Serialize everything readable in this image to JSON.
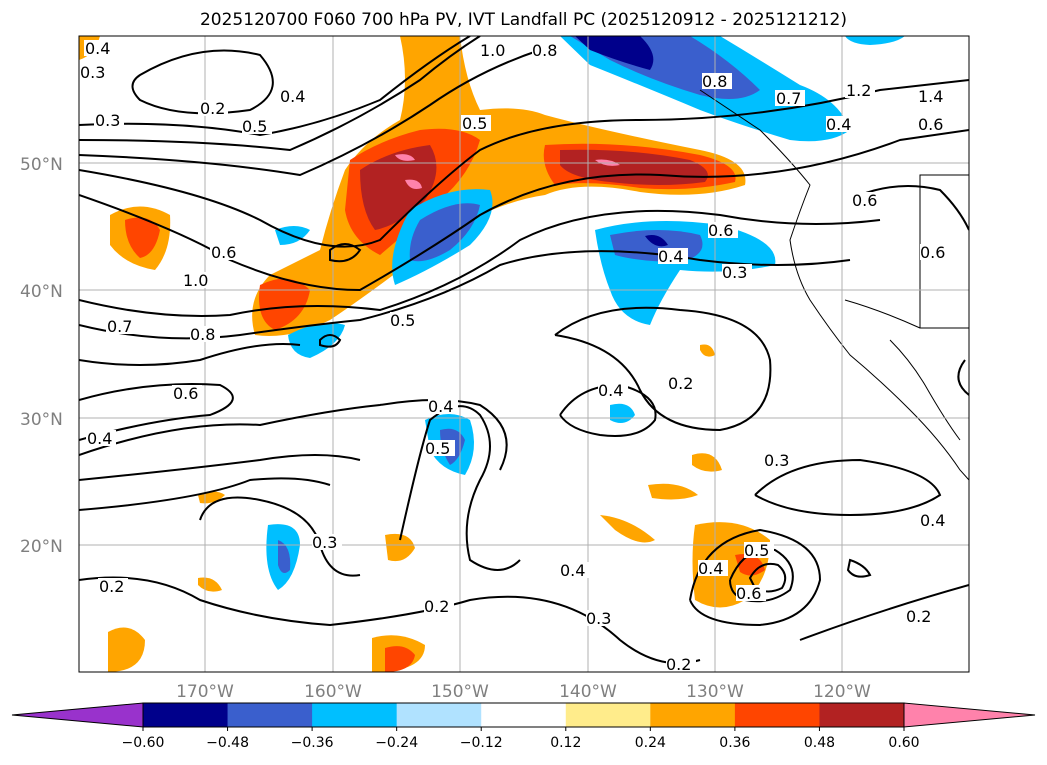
{
  "title": "2025120700 F060 700 hPa PV, IVT Landfall PC (2025120912 - 2025121212)",
  "map": {
    "lat_ticks": [
      "50°N",
      "40°N",
      "30°N",
      "20°N"
    ],
    "lon_ticks": [
      "170°W",
      "160°W",
      "150°W",
      "140°W",
      "130°W",
      "120°W"
    ],
    "gridlines": true
  },
  "colorbar": {
    "ticks": [
      "−0.60",
      "−0.48",
      "−0.36",
      "−0.24",
      "−0.12",
      "0.12",
      "0.24",
      "0.36",
      "0.48",
      "0.60"
    ],
    "colors": [
      "#9932cc",
      "#00008b",
      "#3a5fcd",
      "#00bfff",
      "#b0e2ff",
      "#ffffff",
      "#ffec8b",
      "#ffa500",
      "#ff4500",
      "#b22222",
      "#ff82ab"
    ],
    "extend": "both"
  },
  "contour_labels": [
    {
      "text": "0.4"
    },
    {
      "text": "0.3"
    },
    {
      "text": "0.2"
    },
    {
      "text": "0.4"
    },
    {
      "text": "1.0"
    },
    {
      "text": "0.8"
    },
    {
      "text": "0.3"
    },
    {
      "text": "0.5"
    },
    {
      "text": "0.5"
    },
    {
      "text": "0.8"
    },
    {
      "text": "0.7"
    },
    {
      "text": "1.2"
    },
    {
      "text": "1.4"
    },
    {
      "text": "0.4"
    },
    {
      "text": "0.6"
    },
    {
      "text": "0.6"
    },
    {
      "text": "0.6"
    },
    {
      "text": "1.0"
    },
    {
      "text": "0.6"
    },
    {
      "text": "0.4"
    },
    {
      "text": "0.3"
    },
    {
      "text": "0.7"
    },
    {
      "text": "0.8"
    },
    {
      "text": "0.5"
    },
    {
      "text": "0.6"
    },
    {
      "text": "0.4"
    },
    {
      "text": "0.2"
    },
    {
      "text": "0.4"
    },
    {
      "text": "0.5"
    },
    {
      "text": "0.4"
    },
    {
      "text": "0.3"
    },
    {
      "text": "0.3"
    },
    {
      "text": "0.4"
    },
    {
      "text": "0.5"
    },
    {
      "text": "0.4"
    },
    {
      "text": "0.6"
    },
    {
      "text": "0.4"
    },
    {
      "text": "0.3"
    },
    {
      "text": "0.2"
    },
    {
      "text": "0.2"
    },
    {
      "text": "0.2"
    },
    {
      "text": "0.2"
    },
    {
      "text": "0.6"
    }
  ]
}
